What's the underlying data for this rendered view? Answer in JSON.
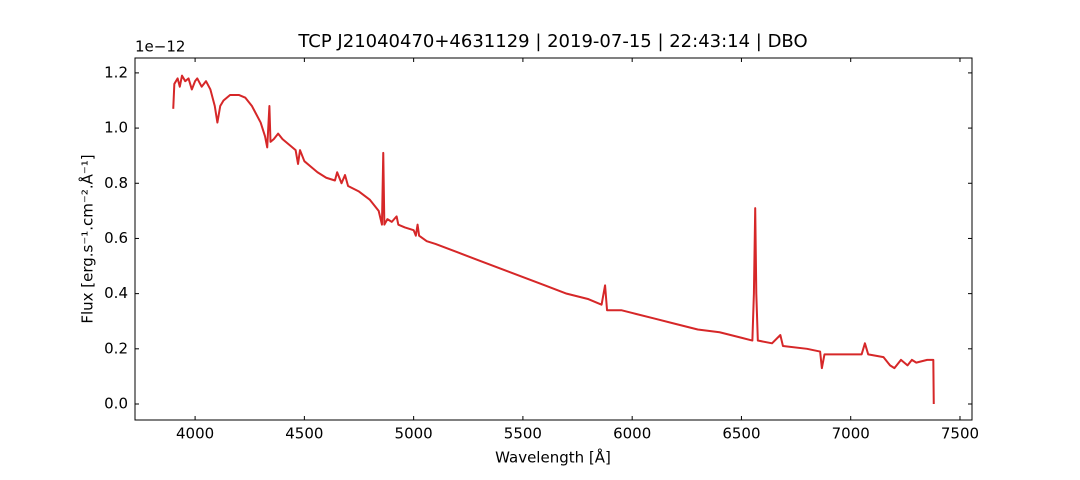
{
  "chart_data": {
    "type": "line",
    "title": "TCP J21040470+4631129 | 2019-07-15 | 22:43:14 | DBO",
    "x_label": "Wavelength [Å]",
    "y_label": "Flux [erg.s⁻¹.cm⁻².Å⁻¹]",
    "y_offset_label": "1e−12",
    "color": "#d62728",
    "x": [
      3900,
      3905,
      3920,
      3930,
      3940,
      3955,
      3970,
      3985,
      4000,
      4010,
      4030,
      4050,
      4070,
      4090,
      4102,
      4115,
      4130,
      4160,
      4200,
      4230,
      4260,
      4300,
      4320,
      4330,
      4340,
      4345,
      4360,
      4380,
      4400,
      4430,
      4460,
      4471,
      4480,
      4500,
      4530,
      4560,
      4600,
      4640,
      4650,
      4670,
      4686,
      4700,
      4750,
      4800,
      4840,
      4855,
      4861,
      4866,
      4880,
      4900,
      4922,
      4930,
      4960,
      5000,
      5010,
      5018,
      5025,
      5060,
      5100,
      5200,
      5300,
      5400,
      5500,
      5600,
      5700,
      5800,
      5860,
      5876,
      5885,
      5950,
      6000,
      6100,
      6200,
      6300,
      6400,
      6500,
      6550,
      6557,
      6563,
      6568,
      6575,
      6640,
      6678,
      6690,
      6800,
      6860,
      6868,
      6880,
      6950,
      7000,
      7050,
      7065,
      7080,
      7150,
      7180,
      7200,
      7230,
      7260,
      7280,
      7300,
      7350,
      7378,
      7380
    ],
    "values": [
      1.07,
      1.16,
      1.18,
      1.15,
      1.19,
      1.17,
      1.18,
      1.14,
      1.17,
      1.18,
      1.15,
      1.17,
      1.14,
      1.08,
      1.02,
      1.08,
      1.1,
      1.12,
      1.12,
      1.11,
      1.08,
      1.02,
      0.97,
      0.93,
      1.08,
      0.95,
      0.96,
      0.98,
      0.96,
      0.94,
      0.92,
      0.87,
      0.92,
      0.88,
      0.86,
      0.84,
      0.82,
      0.81,
      0.84,
      0.8,
      0.83,
      0.79,
      0.77,
      0.74,
      0.7,
      0.65,
      0.91,
      0.65,
      0.67,
      0.66,
      0.68,
      0.65,
      0.64,
      0.63,
      0.61,
      0.65,
      0.61,
      0.59,
      0.58,
      0.55,
      0.52,
      0.49,
      0.46,
      0.43,
      0.4,
      0.38,
      0.36,
      0.43,
      0.34,
      0.34,
      0.33,
      0.31,
      0.29,
      0.27,
      0.26,
      0.24,
      0.23,
      0.4,
      0.71,
      0.4,
      0.23,
      0.22,
      0.25,
      0.21,
      0.2,
      0.19,
      0.13,
      0.18,
      0.18,
      0.18,
      0.18,
      0.22,
      0.18,
      0.17,
      0.14,
      0.13,
      0.16,
      0.14,
      0.16,
      0.15,
      0.16,
      0.16,
      0.0
    ],
    "xlim": [
      3725,
      7555
    ],
    "ylim": [
      -0.058,
      1.254
    ],
    "xticks": [
      4000,
      4500,
      5000,
      5500,
      6000,
      6500,
      7000,
      7500
    ],
    "yticks": [
      {
        "value": 0,
        "label": "0.0"
      },
      0.2,
      0.4,
      0.6,
      0.8,
      {
        "value": 1,
        "label": "1.0"
      },
      1.2
    ]
  }
}
